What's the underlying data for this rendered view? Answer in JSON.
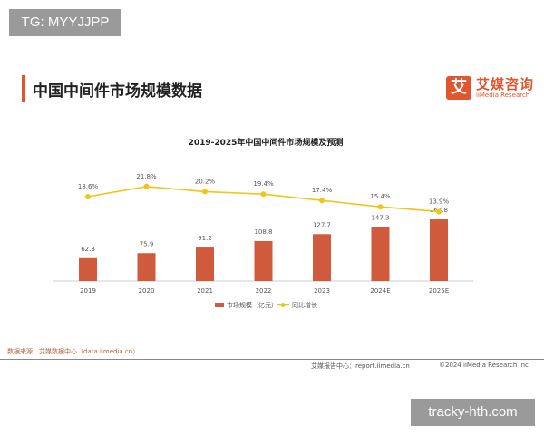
{
  "watermark_top": "TG: MYYJJPP",
  "watermark_bottom": "tracky-hth.com",
  "page_title": "中国中间件市场规模数据",
  "logo": {
    "mark": "艾",
    "cn": "艾媒咨询",
    "en": "iiMedia Research"
  },
  "source": "数据来源：艾媒数据中心（data.iimedia.cn）",
  "footer_report": "艾媒报告中心：report.iimedia.cn",
  "footer_copyright": "©2024  iiMedia Research  Inc",
  "colors": {
    "bar": "#d05a3c",
    "line": "#f0c419",
    "accent": "#e0562e"
  },
  "chart_data": {
    "type": "bar+line",
    "title": "2019-2025年中国中间件市场规模及预测",
    "categories": [
      "2019",
      "2020",
      "2021",
      "2022",
      "2023",
      "2024E",
      "2025E"
    ],
    "series": [
      {
        "name": "市场规模（亿元）",
        "type": "bar",
        "values": [
          62.3,
          75.9,
          91.2,
          108.8,
          127.7,
          147.3,
          167.8
        ],
        "labels": [
          "62.3",
          "75.9",
          "91.2",
          "108.8",
          "127.7",
          "147.3",
          "167.8"
        ]
      },
      {
        "name": "同比增长",
        "type": "line",
        "values": [
          18.6,
          21.8,
          20.2,
          19.4,
          17.4,
          15.4,
          13.9
        ],
        "labels": [
          "18.6%",
          "21.8%",
          "20.2%",
          "19.4%",
          "17.4%",
          "15.4%",
          "13.9%"
        ]
      }
    ],
    "legend": "bottom",
    "grid": false
  }
}
